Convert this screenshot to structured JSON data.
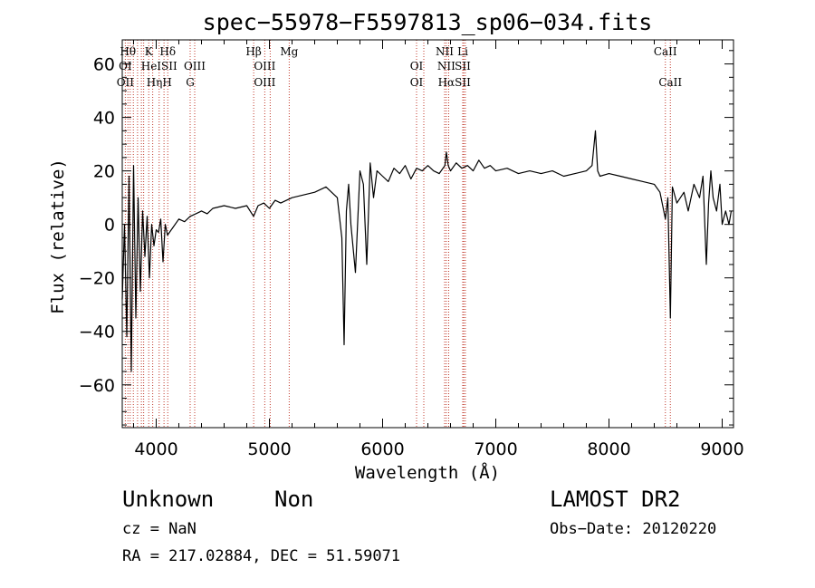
{
  "chart_data": {
    "type": "line",
    "title": "spec−55978−F5597813_sp06−034.fits",
    "xlabel": "Wavelength (Å)",
    "ylabel": "Flux (relative)",
    "xlim": [
      3700,
      9100
    ],
    "ylim": [
      -76,
      69
    ],
    "x_ticks": [
      4000,
      5000,
      6000,
      7000,
      8000,
      9000
    ],
    "y_ticks": [
      -60,
      -40,
      -20,
      0,
      20,
      40,
      60
    ],
    "x_tick_labels": [
      "4000",
      "5000",
      "6000",
      "7000",
      "8000",
      "9000"
    ],
    "y_tick_labels": [
      "−60",
      "−40",
      "−20",
      "0",
      "20",
      "40",
      "60"
    ],
    "grid": false,
    "series": [
      {
        "color": "#000000",
        "x": [
          3700,
          3720,
          3740,
          3760,
          3780,
          3800,
          3820,
          3840,
          3860,
          3880,
          3900,
          3920,
          3940,
          3960,
          3980,
          4000,
          4020,
          4040,
          4060,
          4080,
          4100,
          4150,
          4200,
          4250,
          4300,
          4350,
          4400,
          4450,
          4500,
          4600,
          4700,
          4800,
          4860,
          4900,
          4950,
          5000,
          5050,
          5100,
          5200,
          5300,
          5400,
          5500,
          5600,
          5640,
          5660,
          5680,
          5700,
          5720,
          5760,
          5800,
          5830,
          5860,
          5890,
          5920,
          5950,
          6000,
          6050,
          6100,
          6150,
          6200,
          6250,
          6300,
          6350,
          6400,
          6450,
          6500,
          6550,
          6563,
          6580,
          6600,
          6650,
          6700,
          6750,
          6800,
          6850,
          6900,
          6950,
          7000,
          7100,
          7200,
          7300,
          7400,
          7500,
          7600,
          7700,
          7800,
          7850,
          7880,
          7900,
          7920,
          8000,
          8100,
          8200,
          8300,
          8400,
          8450,
          8498,
          8520,
          8542,
          8560,
          8600,
          8662,
          8700,
          8750,
          8800,
          8830,
          8860,
          8880,
          8900,
          8920,
          8950,
          8980,
          9000,
          9030,
          9060,
          9080
        ],
        "y": [
          -28,
          0,
          -42,
          18,
          -55,
          22,
          -35,
          10,
          -25,
          5,
          -12,
          3,
          -20,
          0,
          -8,
          -2,
          -3,
          2,
          -14,
          0,
          -4,
          -1,
          2,
          1,
          3,
          4,
          5,
          4,
          6,
          7,
          6,
          7,
          3,
          7,
          8,
          6,
          9,
          8,
          10,
          11,
          12,
          14,
          10,
          -5,
          -45,
          5,
          15,
          0,
          -18,
          20,
          15,
          -15,
          23,
          10,
          20,
          18,
          16,
          21,
          19,
          22,
          17,
          21,
          20,
          22,
          20,
          19,
          22,
          27,
          22,
          20,
          23,
          21,
          22,
          20,
          24,
          21,
          22,
          20,
          21,
          19,
          20,
          19,
          20,
          18,
          19,
          20,
          22,
          35,
          20,
          18,
          19,
          18,
          17,
          16,
          15,
          12,
          2,
          10,
          -35,
          14,
          8,
          12,
          5,
          15,
          10,
          18,
          -15,
          8,
          20,
          10,
          5,
          15,
          0,
          5,
          0,
          5
        ]
      }
    ],
    "line_markers": [
      {
        "wavelength": 3727,
        "top": "",
        "mid": "OI",
        "bot": "OII"
      },
      {
        "wavelength": 3750,
        "top": "Hθ",
        "mid": "",
        "bot": ""
      },
      {
        "wavelength": 3770,
        "top": "",
        "mid": "",
        "bot": ""
      },
      {
        "wavelength": 3798,
        "top": "",
        "mid": "",
        "bot": ""
      },
      {
        "wavelength": 3835,
        "top": "",
        "mid": "",
        "bot": ""
      },
      {
        "wavelength": 3869,
        "top": "",
        "mid": "",
        "bot": ""
      },
      {
        "wavelength": 3889,
        "top": "",
        "mid": "",
        "bot": ""
      },
      {
        "wavelength": 3934,
        "top": "K",
        "mid": "",
        "bot": ""
      },
      {
        "wavelength": 3969,
        "top": "",
        "mid": "",
        "bot": ""
      },
      {
        "wavelength": 4026,
        "top": "",
        "mid": "HeISII",
        "bot": "HηH"
      },
      {
        "wavelength": 4069,
        "top": "",
        "mid": "",
        "bot": ""
      },
      {
        "wavelength": 4102,
        "top": "Hδ",
        "mid": "",
        "bot": ""
      },
      {
        "wavelength": 4300,
        "top": "",
        "mid": "",
        "bot": "G"
      },
      {
        "wavelength": 4340,
        "top": "",
        "mid": "OIII",
        "bot": ""
      },
      {
        "wavelength": 4861,
        "top": "Hβ",
        "mid": "",
        "bot": ""
      },
      {
        "wavelength": 4959,
        "top": "",
        "mid": "OIII",
        "bot": "OIII"
      },
      {
        "wavelength": 5007,
        "top": "",
        "mid": "",
        "bot": ""
      },
      {
        "wavelength": 5175,
        "top": "Mg",
        "mid": "",
        "bot": ""
      },
      {
        "wavelength": 6300,
        "top": "",
        "mid": "OI",
        "bot": "OI"
      },
      {
        "wavelength": 6364,
        "top": "",
        "mid": "",
        "bot": ""
      },
      {
        "wavelength": 6548,
        "top": "NII",
        "mid": "",
        "bot": ""
      },
      {
        "wavelength": 6563,
        "top": "",
        "mid": "NII",
        "bot": "Hα"
      },
      {
        "wavelength": 6584,
        "top": "",
        "mid": "",
        "bot": ""
      },
      {
        "wavelength": 6708,
        "top": "Li",
        "mid": "SII",
        "bot": "SII"
      },
      {
        "wavelength": 6717,
        "top": "",
        "mid": "",
        "bot": ""
      },
      {
        "wavelength": 6731,
        "top": "",
        "mid": "",
        "bot": ""
      },
      {
        "wavelength": 8498,
        "top": "CaII",
        "mid": "",
        "bot": ""
      },
      {
        "wavelength": 8542,
        "top": "",
        "mid": "",
        "bot": "CaII"
      }
    ]
  },
  "info": {
    "class_label": "Unknown",
    "subclass_label": "Non",
    "survey_label": "LAMOST DR2",
    "cz_text": "cz = NaN",
    "obs_date_text": "Obs−Date: 20120220",
    "coords_text": "RA = 217.02884, DEC =  51.59071"
  }
}
